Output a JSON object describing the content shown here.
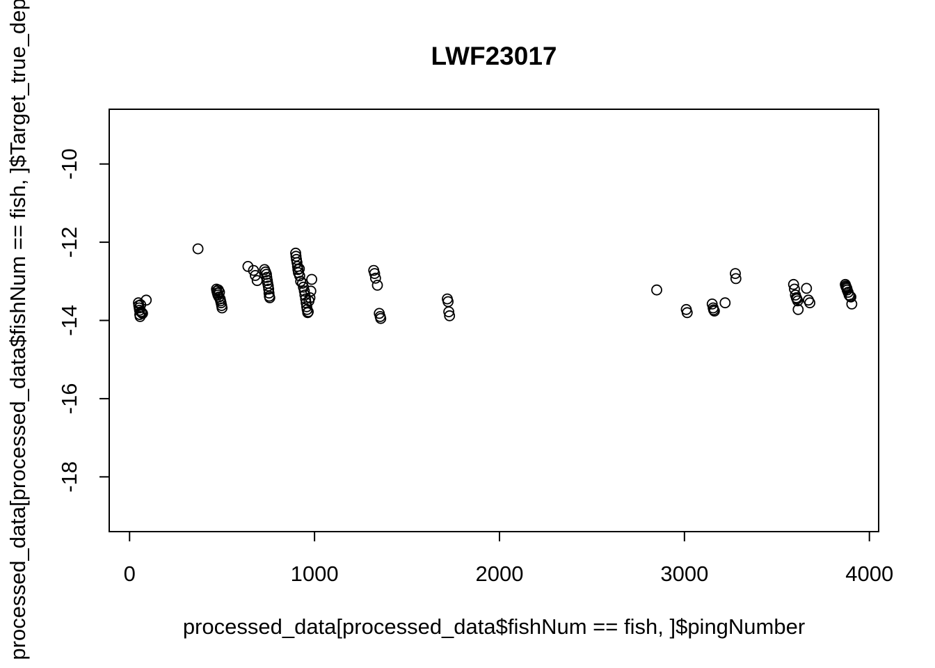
{
  "chart_data": {
    "type": "scatter",
    "title": "LWF23017",
    "xlabel": "processed_data[processed_data$fishNum == fish, ]$pingNumber",
    "ylabel": "processed_data[processed_data$fishNum == fish, ]$Target_true_depth",
    "xlim": [
      -110,
      4050
    ],
    "ylim": [
      -19.4,
      -8.6
    ],
    "x_ticks": [
      0,
      1000,
      2000,
      3000,
      4000
    ],
    "y_ticks": [
      -10,
      -12,
      -14,
      -16,
      -18
    ],
    "grid": false,
    "marker": "open-circle",
    "colors": {
      "points": "#000000",
      "frame": "#000000",
      "background": "#ffffff"
    },
    "points": [
      [
        48,
        -13.55
      ],
      [
        50,
        -13.62
      ],
      [
        52,
        -13.68
      ],
      [
        54,
        -13.74
      ],
      [
        55,
        -13.85
      ],
      [
        57,
        -13.9
      ],
      [
        60,
        -13.6
      ],
      [
        62,
        -13.78
      ],
      [
        65,
        -13.8
      ],
      [
        70,
        -13.82
      ],
      [
        90,
        -13.48
      ],
      [
        370,
        -12.17
      ],
      [
        470,
        -13.2
      ],
      [
        472,
        -13.25
      ],
      [
        475,
        -13.3
      ],
      [
        478,
        -13.35
      ],
      [
        480,
        -13.22
      ],
      [
        483,
        -13.4
      ],
      [
        486,
        -13.28
      ],
      [
        490,
        -13.45
      ],
      [
        492,
        -13.5
      ],
      [
        495,
        -13.55
      ],
      [
        498,
        -13.62
      ],
      [
        500,
        -13.68
      ],
      [
        640,
        -12.62
      ],
      [
        670,
        -12.72
      ],
      [
        680,
        -12.85
      ],
      [
        690,
        -12.98
      ],
      [
        730,
        -12.7
      ],
      [
        735,
        -12.76
      ],
      [
        740,
        -12.82
      ],
      [
        742,
        -12.9
      ],
      [
        745,
        -12.98
      ],
      [
        747,
        -13.05
      ],
      [
        750,
        -13.12
      ],
      [
        752,
        -13.2
      ],
      [
        754,
        -13.3
      ],
      [
        756,
        -13.38
      ],
      [
        758,
        -13.42
      ],
      [
        898,
        -12.28
      ],
      [
        900,
        -12.36
      ],
      [
        902,
        -12.44
      ],
      [
        905,
        -12.52
      ],
      [
        908,
        -12.62
      ],
      [
        910,
        -12.7
      ],
      [
        913,
        -12.78
      ],
      [
        918,
        -12.68
      ],
      [
        920,
        -12.86
      ],
      [
        925,
        -13.0
      ],
      [
        935,
        -13.05
      ],
      [
        940,
        -13.15
      ],
      [
        945,
        -13.25
      ],
      [
        948,
        -13.35
      ],
      [
        952,
        -13.45
      ],
      [
        955,
        -13.55
      ],
      [
        958,
        -13.65
      ],
      [
        960,
        -13.72
      ],
      [
        963,
        -13.8
      ],
      [
        966,
        -13.78
      ],
      [
        970,
        -13.5
      ],
      [
        975,
        -13.42
      ],
      [
        980,
        -13.25
      ],
      [
        985,
        -12.95
      ],
      [
        1320,
        -12.72
      ],
      [
        1325,
        -12.8
      ],
      [
        1330,
        -12.92
      ],
      [
        1340,
        -13.1
      ],
      [
        1350,
        -13.82
      ],
      [
        1355,
        -13.9
      ],
      [
        1358,
        -13.95
      ],
      [
        1718,
        -13.45
      ],
      [
        1722,
        -13.52
      ],
      [
        1726,
        -13.78
      ],
      [
        1730,
        -13.88
      ],
      [
        2850,
        -13.22
      ],
      [
        3010,
        -13.72
      ],
      [
        3015,
        -13.8
      ],
      [
        3150,
        -13.58
      ],
      [
        3155,
        -13.68
      ],
      [
        3158,
        -13.73
      ],
      [
        3162,
        -13.76
      ],
      [
        3220,
        -13.55
      ],
      [
        3275,
        -12.8
      ],
      [
        3278,
        -12.93
      ],
      [
        3590,
        -13.08
      ],
      [
        3595,
        -13.2
      ],
      [
        3600,
        -13.35
      ],
      [
        3605,
        -13.42
      ],
      [
        3608,
        -13.45
      ],
      [
        3612,
        -13.5
      ],
      [
        3615,
        -13.72
      ],
      [
        3660,
        -13.18
      ],
      [
        3670,
        -13.48
      ],
      [
        3678,
        -13.55
      ],
      [
        3870,
        -13.08
      ],
      [
        3872,
        -13.12
      ],
      [
        3875,
        -13.15
      ],
      [
        3878,
        -13.18
      ],
      [
        3880,
        -13.22
      ],
      [
        3885,
        -13.28
      ],
      [
        3890,
        -13.35
      ],
      [
        3895,
        -13.38
      ],
      [
        3900,
        -13.4
      ],
      [
        3905,
        -13.58
      ]
    ]
  }
}
